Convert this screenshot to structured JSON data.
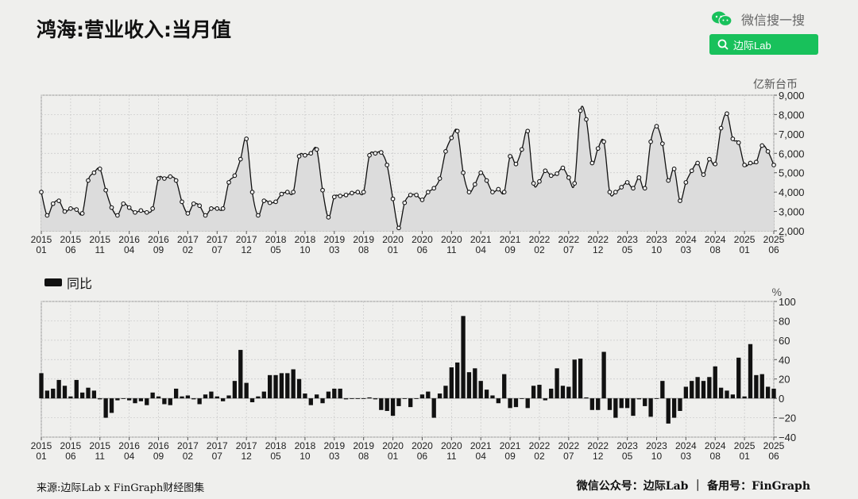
{
  "title": "鸿海:营业收入:当月值",
  "header": {
    "wechat_label": "微信搜一搜",
    "search_label": "边际Lab"
  },
  "top_chart": {
    "unit": "亿新台币",
    "yticks": [
      "9,000",
      "8,000",
      "7,000",
      "6,000",
      "5,000",
      "4,000",
      "3,000",
      "2,000"
    ]
  },
  "bottom_chart": {
    "legend": "同比",
    "unit": "%",
    "yticks": [
      "100",
      "80",
      "60",
      "40",
      "20",
      "0",
      "−20",
      "−40"
    ]
  },
  "x_labels": [
    [
      "2015",
      "01"
    ],
    [
      "2015",
      "06"
    ],
    [
      "2015",
      "11"
    ],
    [
      "2016",
      "04"
    ],
    [
      "2016",
      "09"
    ],
    [
      "2017",
      "02"
    ],
    [
      "2017",
      "07"
    ],
    [
      "2017",
      "12"
    ],
    [
      "2018",
      "05"
    ],
    [
      "2018",
      "10"
    ],
    [
      "2019",
      "03"
    ],
    [
      "2019",
      "08"
    ],
    [
      "2020",
      "01"
    ],
    [
      "2020",
      "06"
    ],
    [
      "2020",
      "11"
    ],
    [
      "2021",
      "04"
    ],
    [
      "2021",
      "09"
    ],
    [
      "2022",
      "02"
    ],
    [
      "2022",
      "07"
    ],
    [
      "2022",
      "12"
    ],
    [
      "2023",
      "05"
    ],
    [
      "2023",
      "10"
    ],
    [
      "2024",
      "03"
    ],
    [
      "2024",
      "08"
    ],
    [
      "2025",
      "01"
    ],
    [
      "2025",
      "06"
    ]
  ],
  "footer": {
    "source": "来源:边际Lab x FinGraph财经图集",
    "right": "微信公众号：边际Lab ｜ 备用号：FinGraph"
  },
  "chart_data": [
    {
      "type": "area",
      "title": "鸿海:营业收入:当月值",
      "ylabel": "亿新台币",
      "ylim": [
        2000,
        9000
      ],
      "x_start": "2015-01",
      "x_end": "2025-06",
      "values": [
        4000,
        2800,
        3400,
        3550,
        3000,
        3150,
        3100,
        2900,
        4600,
        5000,
        5200,
        4100,
        3200,
        2800,
        3400,
        3200,
        2950,
        3050,
        2950,
        3150,
        4700,
        4700,
        4800,
        4600,
        3500,
        2900,
        3400,
        3300,
        2800,
        3150,
        3150,
        3150,
        4500,
        4850,
        5700,
        6750,
        4000,
        2800,
        3550,
        3450,
        3500,
        3900,
        4000,
        4000,
        5850,
        5900,
        6000,
        6200,
        4100,
        2700,
        3750,
        3800,
        3850,
        3950,
        4000,
        4000,
        5900,
        6000,
        6050,
        5400,
        3650,
        2150,
        3450,
        3850,
        3850,
        3600,
        4000,
        4200,
        4700,
        6100,
        6800,
        7150,
        5000,
        4000,
        4400,
        5000,
        4600,
        4000,
        4150,
        4000,
        5850,
        5450,
        6200,
        7150,
        4450,
        4550,
        5100,
        4850,
        4950,
        5250,
        4750,
        4450,
        8200,
        7750,
        5500,
        6250,
        6600,
        4000,
        4000,
        4250,
        4500,
        4200,
        4750,
        4200,
        6600,
        7400,
        6500,
        4600,
        5200,
        3550,
        4500,
        5100,
        5500,
        4900,
        5700,
        5450,
        7300,
        8050,
        6750,
        6550,
        5400,
        5500,
        5550,
        6400,
        6100,
        5400
      ]
    },
    {
      "type": "bar",
      "series": [
        {
          "name": "同比",
          "values": [
            26,
            8,
            10,
            19,
            13,
            2,
            19,
            6,
            11,
            8,
            -1,
            -20,
            -15,
            -2,
            0,
            -2,
            -5,
            -3,
            -7,
            6,
            2,
            -6,
            -7,
            10,
            2,
            3,
            -1,
            -6,
            4,
            7,
            2,
            -3,
            3,
            18,
            50,
            16,
            -4,
            2,
            7,
            24,
            24,
            26,
            26,
            30,
            20,
            5,
            -7,
            4,
            -5,
            7,
            10,
            10,
            -1,
            0,
            0,
            0,
            1,
            -1,
            -12,
            -13,
            -18,
            -8,
            0,
            -9,
            0,
            4,
            7,
            -20,
            5,
            13,
            32,
            37,
            85,
            27,
            31,
            18,
            9,
            3,
            -5,
            25,
            -10,
            -9,
            0,
            -10,
            13,
            14,
            -2,
            10,
            31,
            13,
            12,
            40,
            41,
            1,
            -12,
            -12,
            48,
            -12,
            -20,
            -10,
            -10,
            -18,
            -1,
            -8,
            -19,
            0,
            18,
            -26,
            -20,
            -13,
            12,
            18,
            22,
            18,
            22,
            33,
            11,
            8,
            4,
            42,
            2,
            56,
            24,
            25,
            12,
            10
          ]
        }
      ],
      "ylabel": "%",
      "ylim": [
        -40,
        100
      ],
      "x_start": "2015-01",
      "x_end": "2025-06"
    }
  ]
}
